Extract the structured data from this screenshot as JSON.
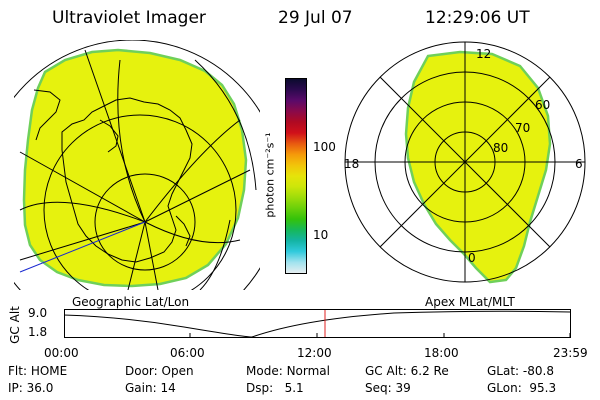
{
  "header": {
    "title": "Ultraviolet Imager",
    "date": "29 Jul 07",
    "time": "12:29:06 UT"
  },
  "colorbar": {
    "unit_label": "photon cm⁻²s⁻¹",
    "tick_labels": [
      "100",
      "10"
    ],
    "colors": [
      "#0b0b2e",
      "#2c0a4f",
      "#5a0a6a",
      "#8a0a4a",
      "#b00a22",
      "#d0101a",
      "#e85a10",
      "#f59a0a",
      "#f2c40a",
      "#e6e40a",
      "#cce60a",
      "#9edc0a",
      "#6ad00a",
      "#34c20a",
      "#16b85a",
      "#14b4a4",
      "#30cadc",
      "#a0e2ee",
      "#e6eef0"
    ]
  },
  "left_panel": {
    "label": "Geographic Lat/Lon",
    "aurora_color": "#e6f20e",
    "edge_color": "#6fd05a"
  },
  "right_panel": {
    "label": "Apex MLat/MLT",
    "mlt_labels": {
      "top": "12",
      "left": "18",
      "right": "6",
      "bottom": "0"
    },
    "mlat_labels": [
      "60",
      "70",
      "80"
    ]
  },
  "timeline": {
    "axis_label": "GC Alt",
    "y_ticks": [
      "9.0",
      "1.8"
    ],
    "x_ticks": [
      "00:00",
      "06:00",
      "12:00",
      "18:00",
      "23:59"
    ],
    "current_marker_color": "#e02020"
  },
  "status": {
    "flt_label": "Flt:",
    "flt_value": "HOME",
    "ip_label": "IP:",
    "ip_value": "36.0",
    "door_label": "Door:",
    "door_value": "Open",
    "gain_label": "Gain:",
    "gain_value": "14",
    "mode_label": "Mode:",
    "mode_value": "Normal",
    "dsp_label": "Dsp:",
    "dsp_value": "5.1",
    "gcalt_label": "GC Alt:",
    "gcalt_value": "6.2 Re",
    "seq_label": "Seq:",
    "seq_value": "39",
    "glat_label": "GLat:",
    "glat_value": "-80.8",
    "glon_label": "GLon:",
    "glon_value": "95.3"
  }
}
